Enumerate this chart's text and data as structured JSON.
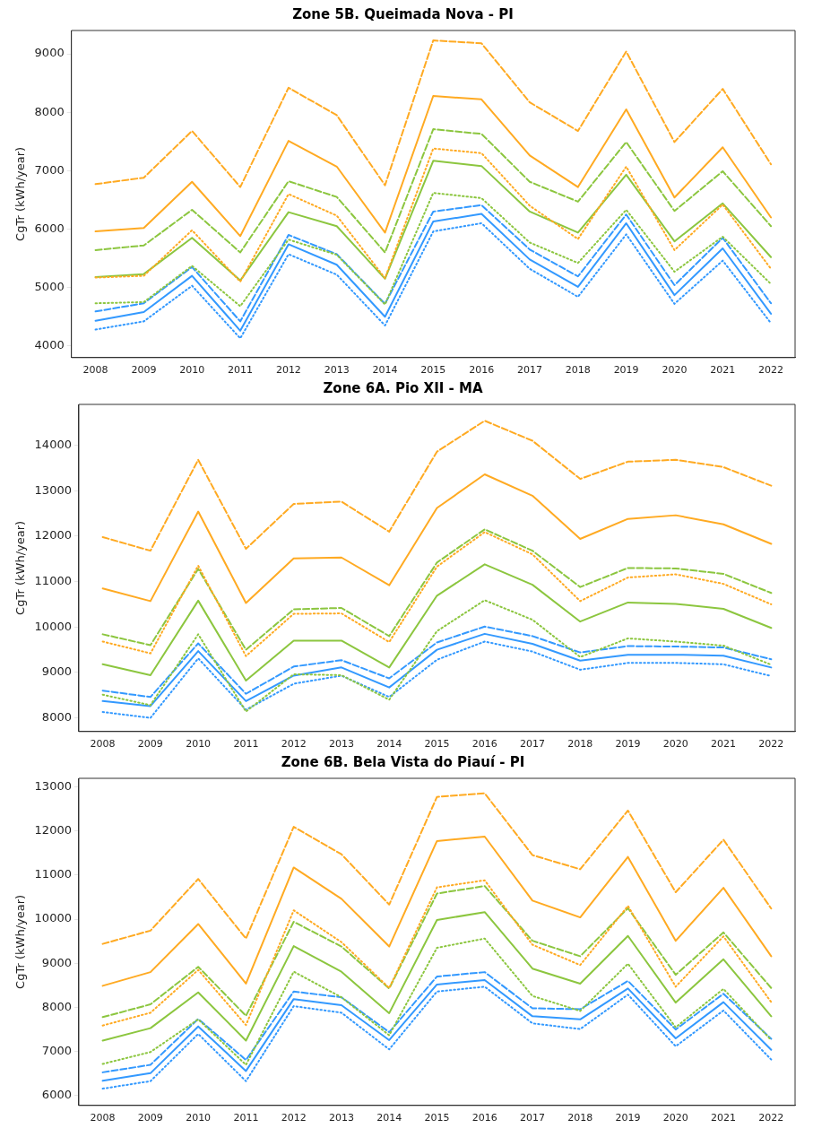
{
  "chart_data": [
    {
      "type": "line",
      "title": "Zone 5B. Queimada Nova - PI",
      "ylabel": "CgTr (kWh/year)",
      "categories": [
        "2008",
        "2009",
        "2010",
        "2011",
        "2012",
        "2013",
        "2014",
        "2015",
        "2016",
        "2017",
        "2018",
        "2019",
        "2020",
        "2021",
        "2022"
      ],
      "ylim": [
        3800,
        9400
      ],
      "yticks": [
        4000,
        5000,
        6000,
        7000,
        8000,
        9000
      ],
      "grid": false,
      "legend": false,
      "marker": "none",
      "series": [
        {
          "color": "#ffaa22",
          "line_style": "dashed",
          "values": [
            6770,
            6880,
            7680,
            6720,
            8420,
            7950,
            6750,
            9230,
            9180,
            8170,
            7680,
            9040,
            7490,
            8400,
            7110
          ]
        },
        {
          "color": "#ffaa22",
          "line_style": "solid",
          "values": [
            5960,
            6020,
            6810,
            5880,
            7510,
            7070,
            5940,
            8280,
            8220,
            7260,
            6720,
            8050,
            6540,
            7400,
            6200
          ]
        },
        {
          "color": "#ffaa22",
          "line_style": "dotted",
          "values": [
            5170,
            5200,
            5980,
            5100,
            6600,
            6230,
            5160,
            7380,
            7300,
            6400,
            5830,
            7070,
            5640,
            6420,
            5320
          ]
        },
        {
          "color": "#8cc63f",
          "line_style": "dashed",
          "values": [
            5640,
            5720,
            6330,
            5600,
            6820,
            6550,
            5600,
            7710,
            7630,
            6810,
            6470,
            7490,
            6310,
            6990,
            6050
          ]
        },
        {
          "color": "#8cc63f",
          "line_style": "solid",
          "values": [
            5180,
            5230,
            5850,
            5120,
            6290,
            6050,
            5150,
            7170,
            7080,
            6300,
            5940,
            6930,
            5790,
            6440,
            5520
          ]
        },
        {
          "color": "#8cc63f",
          "line_style": "dotted",
          "values": [
            4730,
            4750,
            5370,
            4680,
            5820,
            5560,
            4710,
            6620,
            6530,
            5770,
            5420,
            6330,
            5270,
            5870,
            5060
          ]
        },
        {
          "color": "#3399ff",
          "line_style": "dashed",
          "values": [
            4590,
            4730,
            5350,
            4420,
            5900,
            5570,
            4720,
            6300,
            6410,
            5650,
            5190,
            6250,
            5040,
            5850,
            4730
          ]
        },
        {
          "color": "#3399ff",
          "line_style": "solid",
          "values": [
            4430,
            4580,
            5200,
            4260,
            5740,
            5390,
            4500,
            6130,
            6260,
            5480,
            5010,
            6100,
            4870,
            5670,
            4550
          ]
        },
        {
          "color": "#3399ff",
          "line_style": "dotted",
          "values": [
            4280,
            4420,
            5030,
            4130,
            5570,
            5220,
            4350,
            5960,
            6100,
            5320,
            4840,
            5910,
            4720,
            5460,
            4390
          ]
        }
      ]
    },
    {
      "type": "line",
      "title": "Zone 6A. Pio XII - MA",
      "ylabel": "CgTr (kWh/year)",
      "categories": [
        "2008",
        "2009",
        "2010",
        "2011",
        "2012",
        "2013",
        "2014",
        "2015",
        "2016",
        "2017",
        "2018",
        "2019",
        "2020",
        "2021",
        "2022"
      ],
      "ylim": [
        7700,
        14900
      ],
      "yticks": [
        8000,
        9000,
        10000,
        11000,
        12000,
        13000,
        14000
      ],
      "grid": false,
      "legend": false,
      "marker": "none",
      "series": [
        {
          "color": "#ffaa22",
          "line_style": "dashed",
          "values": [
            11980,
            11680,
            13680,
            11720,
            12710,
            12760,
            12100,
            13860,
            14540,
            14100,
            13260,
            13640,
            13680,
            13520,
            13110
          ]
        },
        {
          "color": "#ffaa22",
          "line_style": "solid",
          "values": [
            10850,
            10570,
            12540,
            10530,
            11510,
            11530,
            10920,
            12620,
            13360,
            12890,
            11940,
            12380,
            12460,
            12260,
            11830
          ]
        },
        {
          "color": "#ffaa22",
          "line_style": "dotted",
          "values": [
            9680,
            9420,
            11350,
            9360,
            10290,
            10300,
            9670,
            11330,
            12090,
            11600,
            10570,
            11090,
            11160,
            10950,
            10500
          ]
        },
        {
          "color": "#8cc63f",
          "line_style": "dashed",
          "values": [
            9840,
            9600,
            11280,
            9500,
            10390,
            10420,
            9800,
            11420,
            12150,
            11680,
            10880,
            11300,
            11290,
            11170,
            10750
          ]
        },
        {
          "color": "#8cc63f",
          "line_style": "solid",
          "values": [
            9180,
            8940,
            10580,
            8820,
            9700,
            9700,
            9110,
            10690,
            11380,
            10930,
            10120,
            10540,
            10510,
            10400,
            9980
          ]
        },
        {
          "color": "#8cc63f",
          "line_style": "dotted",
          "values": [
            8510,
            8280,
            9840,
            8140,
            8960,
            8940,
            8400,
            9910,
            10590,
            10160,
            9340,
            9750,
            9680,
            9590,
            9170
          ]
        },
        {
          "color": "#3399ff",
          "line_style": "dashed",
          "values": [
            8600,
            8460,
            9640,
            8530,
            9130,
            9270,
            8870,
            9660,
            10010,
            9800,
            9440,
            9580,
            9570,
            9550,
            9290
          ]
        },
        {
          "color": "#3399ff",
          "line_style": "solid",
          "values": [
            8370,
            8260,
            9470,
            8370,
            8930,
            9110,
            8670,
            9500,
            9850,
            9630,
            9260,
            9390,
            9390,
            9370,
            9110
          ]
        },
        {
          "color": "#3399ff",
          "line_style": "dotted",
          "values": [
            8130,
            8000,
            9310,
            8180,
            8750,
            8930,
            8460,
            9280,
            9680,
            9460,
            9060,
            9210,
            9210,
            9180,
            8920
          ]
        }
      ]
    },
    {
      "type": "line",
      "title": "Zone 6B. Bela Vista do Piauí - PI",
      "ylabel": "CgTr (kWh/year)",
      "categories": [
        "2008",
        "2009",
        "2010",
        "2011",
        "2012",
        "2013",
        "2014",
        "2015",
        "2016",
        "2017",
        "2018",
        "2019",
        "2020",
        "2021",
        "2022"
      ],
      "ylim": [
        5780,
        13190
      ],
      "yticks": [
        6000,
        7000,
        8000,
        9000,
        10000,
        11000,
        12000,
        13000
      ],
      "grid": false,
      "legend": false,
      "marker": "none",
      "series": [
        {
          "color": "#ffaa22",
          "line_style": "dashed",
          "values": [
            9440,
            9740,
            10910,
            9560,
            12090,
            11470,
            10330,
            12770,
            12850,
            11450,
            11130,
            12460,
            10610,
            11800,
            10240
          ]
        },
        {
          "color": "#ffaa22",
          "line_style": "solid",
          "values": [
            8490,
            8800,
            9890,
            8540,
            11170,
            10460,
            9380,
            11770,
            11870,
            10420,
            10040,
            11410,
            9510,
            10710,
            9160
          ]
        },
        {
          "color": "#ffaa22",
          "line_style": "dotted",
          "values": [
            7590,
            7880,
            8850,
            7600,
            10200,
            9480,
            8440,
            10720,
            10880,
            9420,
            8960,
            10300,
            8470,
            9610,
            8120
          ]
        },
        {
          "color": "#8cc63f",
          "line_style": "dashed",
          "values": [
            7780,
            8070,
            8920,
            7810,
            9940,
            9380,
            8430,
            10580,
            10750,
            9510,
            9160,
            10250,
            8740,
            9700,
            8440
          ]
        },
        {
          "color": "#8cc63f",
          "line_style": "solid",
          "values": [
            7250,
            7530,
            8340,
            7250,
            9390,
            8810,
            7870,
            9980,
            10160,
            8880,
            8540,
            9620,
            8110,
            9090,
            7800
          ]
        },
        {
          "color": "#8cc63f",
          "line_style": "dotted",
          "values": [
            6720,
            6990,
            7730,
            6700,
            8810,
            8230,
            7370,
            9350,
            9560,
            8260,
            7920,
            8990,
            7550,
            8420,
            7260
          ]
        },
        {
          "color": "#3399ff",
          "line_style": "dashed",
          "values": [
            6530,
            6700,
            7740,
            6810,
            8360,
            8230,
            7440,
            8700,
            8800,
            7980,
            7960,
            8600,
            7500,
            8310,
            7290
          ]
        },
        {
          "color": "#3399ff",
          "line_style": "solid",
          "values": [
            6340,
            6510,
            7570,
            6560,
            8190,
            8050,
            7260,
            8520,
            8620,
            7800,
            7730,
            8430,
            7300,
            8120,
            7040
          ]
        },
        {
          "color": "#3399ff",
          "line_style": "dotted",
          "values": [
            6160,
            6330,
            7400,
            6330,
            8030,
            7880,
            7050,
            8360,
            8470,
            7640,
            7510,
            8290,
            7120,
            7930,
            6820
          ]
        }
      ]
    }
  ]
}
